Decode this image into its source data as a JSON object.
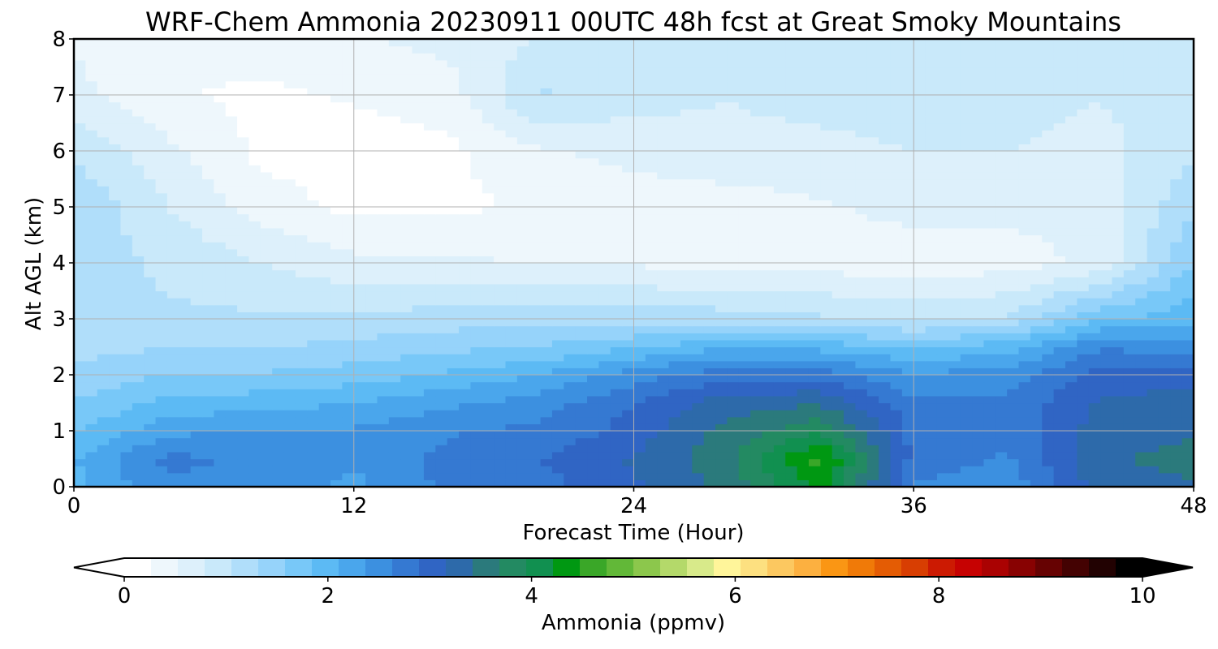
{
  "chart_data": {
    "type": "heatmap",
    "title": "WRF-Chem Ammonia  20230911 00UTC 48h fcst at Great Smoky Mountains",
    "xlabel": "Forecast Time (Hour)",
    "ylabel": "Alt AGL (km)",
    "xlim": [
      0,
      48
    ],
    "ylim": [
      0,
      8
    ],
    "x_ticks": [
      "0",
      "12",
      "24",
      "36",
      "48"
    ],
    "y_ticks": [
      "0",
      "1",
      "2",
      "3",
      "4",
      "5",
      "6",
      "7",
      "8"
    ],
    "grid": true,
    "colorbar": {
      "label": "Ammonia  (ppmv)",
      "range": [
        0,
        10
      ],
      "ticks": [
        "0",
        "2",
        "4",
        "6",
        "8",
        "10"
      ],
      "extend": "both",
      "colors": [
        "#ffffff",
        "#eef7fc",
        "#ddf0fb",
        "#c9e9fa",
        "#b0defa",
        "#96d3fa",
        "#78c8f8",
        "#5cbaf4",
        "#4aa6ec",
        "#3c90e0",
        "#3579d2",
        "#3065c4",
        "#2d6aaa",
        "#2b7a7c",
        "#238a62",
        "#119050",
        "#009812",
        "#3aa728",
        "#62b838",
        "#8cc74c",
        "#b4d96a",
        "#d8ea8a",
        "#fff59a",
        "#fde080",
        "#fcc860",
        "#fcb040",
        "#fa9614",
        "#f07a08",
        "#e45c04",
        "#d83e02",
        "#cc1a02",
        "#c60202",
        "#aa0202",
        "#880202",
        "#660202",
        "#440202",
        "#220202",
        "#000000"
      ]
    },
    "x_hours": [
      0,
      4,
      8,
      12,
      16,
      20,
      24,
      28,
      32,
      36,
      40,
      44,
      48
    ],
    "y_km": [
      0,
      0.5,
      1,
      1.5,
      2,
      2.5,
      3,
      4,
      5,
      6,
      7,
      8
    ],
    "values": [
      [
        2.0,
        2.6,
        2.5,
        2.3,
        2.7,
        2.8,
        3.1,
        3.5,
        4.3,
        2.6,
        2.4,
        3.3,
        3.4
      ],
      [
        2.1,
        2.7,
        2.6,
        2.4,
        2.7,
        2.9,
        3.2,
        3.6,
        4.6,
        2.8,
        2.6,
        3.4,
        3.5
      ],
      [
        1.8,
        2.3,
        2.4,
        2.4,
        2.6,
        2.7,
        3.0,
        3.5,
        3.9,
        2.8,
        2.7,
        3.3,
        3.4
      ],
      [
        1.6,
        1.9,
        2.0,
        2.1,
        2.3,
        2.5,
        2.9,
        3.3,
        3.4,
        2.7,
        2.7,
        3.2,
        3.3
      ],
      [
        1.4,
        1.6,
        1.6,
        1.7,
        1.9,
        2.1,
        2.5,
        2.8,
        2.8,
        2.4,
        2.5,
        3.0,
        3.0
      ],
      [
        1.2,
        1.3,
        1.3,
        1.4,
        1.5,
        1.6,
        1.8,
        2.1,
        2.0,
        1.8,
        2.0,
        2.6,
        2.5
      ],
      [
        1.1,
        1.1,
        1.1,
        1.1,
        1.2,
        1.2,
        1.2,
        1.2,
        1.1,
        1.0,
        1.1,
        1.8,
        2.0
      ],
      [
        1.2,
        1.0,
        0.8,
        0.6,
        0.6,
        0.5,
        0.5,
        0.4,
        0.4,
        0.4,
        0.4,
        0.6,
        1.6
      ],
      [
        1.3,
        0.8,
        0.4,
        0.2,
        0.2,
        0.3,
        0.4,
        0.4,
        0.5,
        0.6,
        0.6,
        0.6,
        1.3
      ],
      [
        1.0,
        0.6,
        0.2,
        0.1,
        0.2,
        0.5,
        0.6,
        0.7,
        0.7,
        0.8,
        0.8,
        0.7,
        1.0
      ],
      [
        0.6,
        0.3,
        0.2,
        0.3,
        0.4,
        1.1,
        0.9,
        0.8,
        0.9,
        0.9,
        0.9,
        0.8,
        0.9
      ],
      [
        0.5,
        0.3,
        0.4,
        0.5,
        0.6,
        0.8,
        0.9,
        0.9,
        0.9,
        0.9,
        1.0,
        1.0,
        0.9
      ]
    ]
  }
}
